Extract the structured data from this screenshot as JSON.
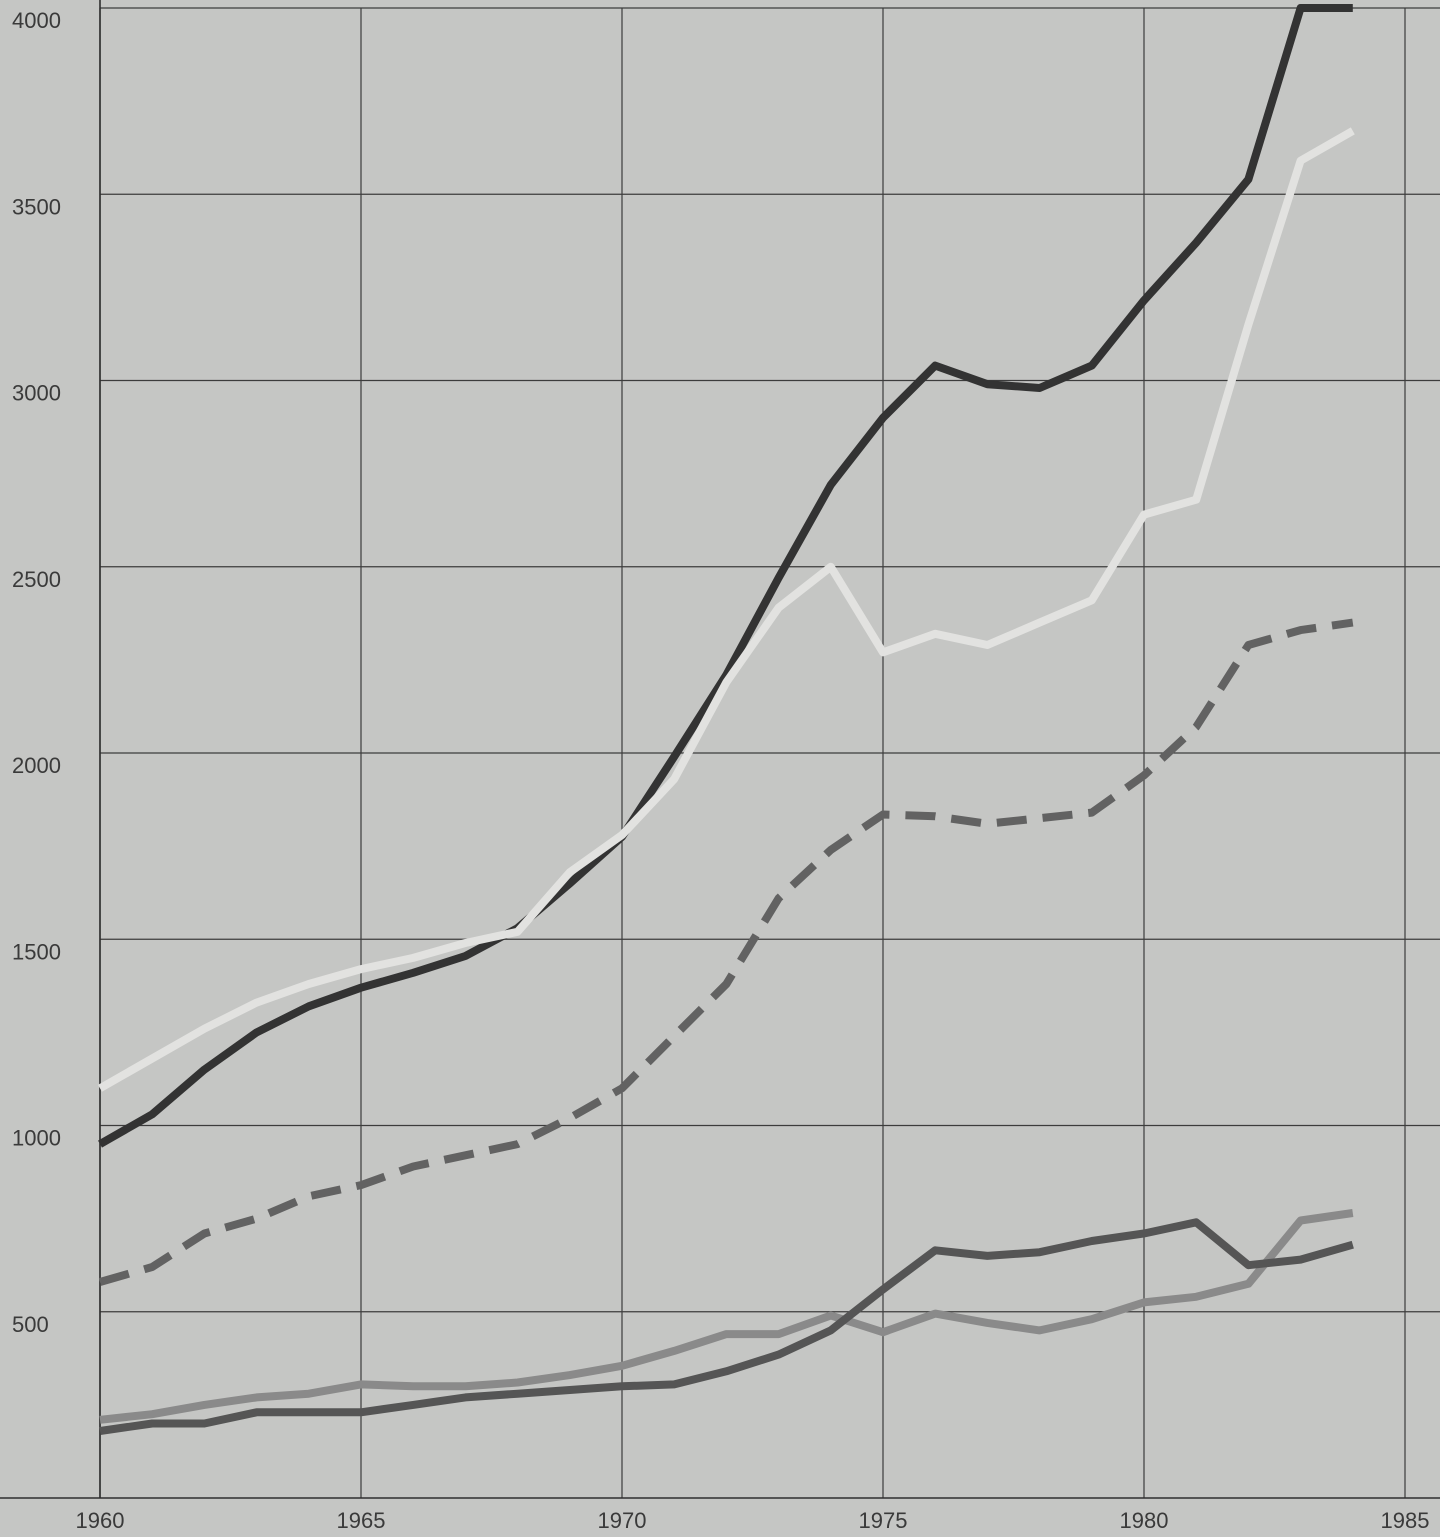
{
  "chart_data": {
    "type": "line",
    "title": "",
    "xlabel": "",
    "ylabel": "",
    "xlim": [
      1960,
      1985
    ],
    "ylim": [
      0,
      4000
    ],
    "x_ticks": [
      1960,
      1965,
      1970,
      1975,
      1980,
      1985
    ],
    "y_ticks": [
      500,
      1000,
      1500,
      2000,
      2500,
      3000,
      3500,
      4000
    ],
    "grid": true,
    "legend": "none",
    "x": [
      1960,
      1961,
      1962,
      1963,
      1964,
      1965,
      1966,
      1967,
      1968,
      1969,
      1970,
      1971,
      1972,
      1973,
      1974,
      1975,
      1976,
      1977,
      1978,
      1979,
      1980,
      1981,
      1982,
      1983,
      1984
    ],
    "series": [
      {
        "color": "#333333",
        "style": "solid",
        "values": [
          950,
          1030,
          1150,
          1250,
          1320,
          1370,
          1410,
          1455,
          1530,
          1650,
          1775,
          1990,
          2210,
          2470,
          2720,
          2900,
          3040,
          2990,
          2980,
          3040,
          3215,
          3370,
          3540,
          4000,
          4000
        ]
      },
      {
        "color": "#e2e2e0",
        "style": "solid",
        "values": [
          1100,
          1180,
          1260,
          1330,
          1380,
          1420,
          1450,
          1490,
          1520,
          1680,
          1780,
          1930,
          2190,
          2390,
          2500,
          2270,
          2320,
          2290,
          2350,
          2410,
          2640,
          2680,
          3150,
          3590,
          3670
        ]
      },
      {
        "color": "#626262",
        "style": "dashed",
        "values": [
          580,
          620,
          710,
          750,
          810,
          840,
          890,
          920,
          950,
          1020,
          1100,
          1240,
          1380,
          1610,
          1740,
          1835,
          1830,
          1810,
          1825,
          1840,
          1940,
          2070,
          2290,
          2330,
          2350
        ]
      },
      {
        "color": "#8a8a8a",
        "style": "solid",
        "values": [
          210,
          225,
          250,
          270,
          280,
          305,
          300,
          300,
          310,
          330,
          355,
          395,
          440,
          440,
          490,
          445,
          495,
          470,
          450,
          480,
          525,
          540,
          575,
          745,
          765
        ]
      },
      {
        "color": "#555555",
        "style": "solid",
        "values": [
          180,
          200,
          200,
          230,
          230,
          230,
          250,
          270,
          280,
          290,
          300,
          305,
          340,
          385,
          450,
          560,
          665,
          650,
          660,
          690,
          710,
          740,
          625,
          640,
          680
        ]
      }
    ]
  }
}
